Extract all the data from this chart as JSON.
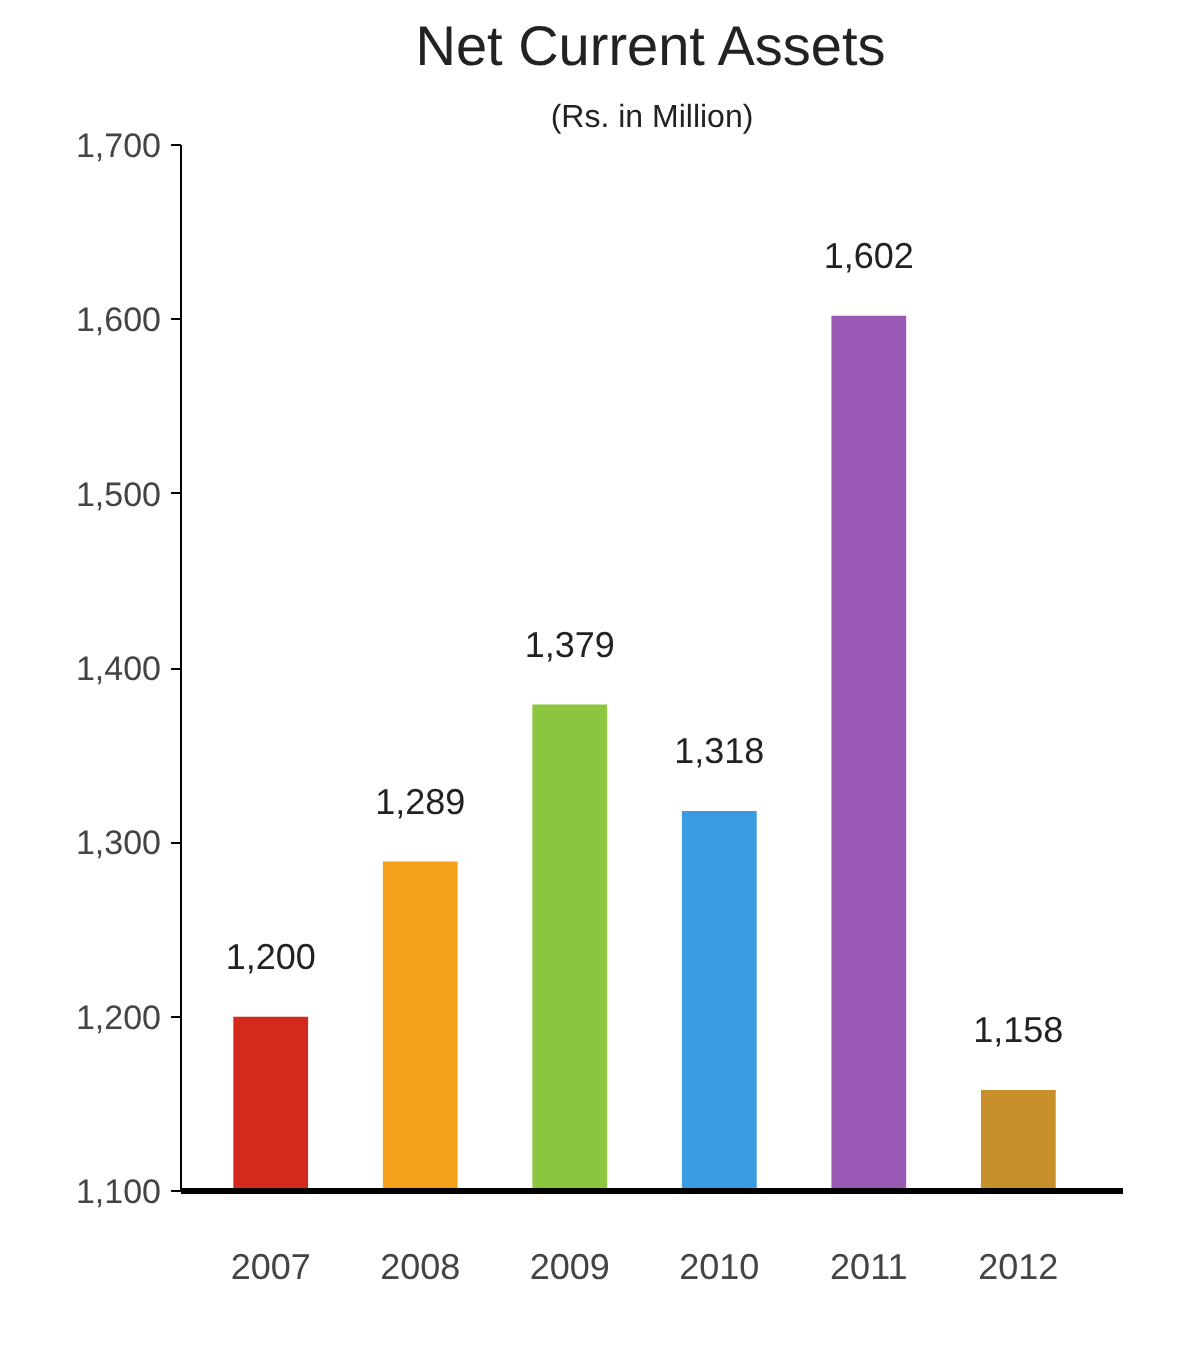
{
  "chart_data": {
    "type": "bar",
    "title": "Net Current Assets",
    "subtitle": "(Rs. in Million)",
    "categories": [
      "2007",
      "2008",
      "2009",
      "2010",
      "2011",
      "2012"
    ],
    "values": [
      1200,
      1289,
      1379,
      1318,
      1602,
      1158
    ],
    "colors": [
      "#d42a1e",
      "#f5a01a",
      "#8cc63f",
      "#3a9be0",
      "#9b59b6",
      "#c8902a"
    ],
    "ylim": [
      1100,
      1700
    ],
    "yticks": [
      {
        "value": 1100,
        "label": "1,100"
      },
      {
        "value": 1200,
        "label": "1,200"
      },
      {
        "value": 1300,
        "label": "1,300"
      },
      {
        "value": 1400,
        "label": "1,400"
      },
      {
        "value": 1500,
        "label": "1,500"
      },
      {
        "value": 1600,
        "label": "1,600"
      },
      {
        "value": 1700,
        "label": "1,700"
      }
    ],
    "value_labels": [
      "1,200",
      "1,289",
      "1,379",
      "1,318",
      "1,602",
      "1,158"
    ],
    "grid": false
  }
}
